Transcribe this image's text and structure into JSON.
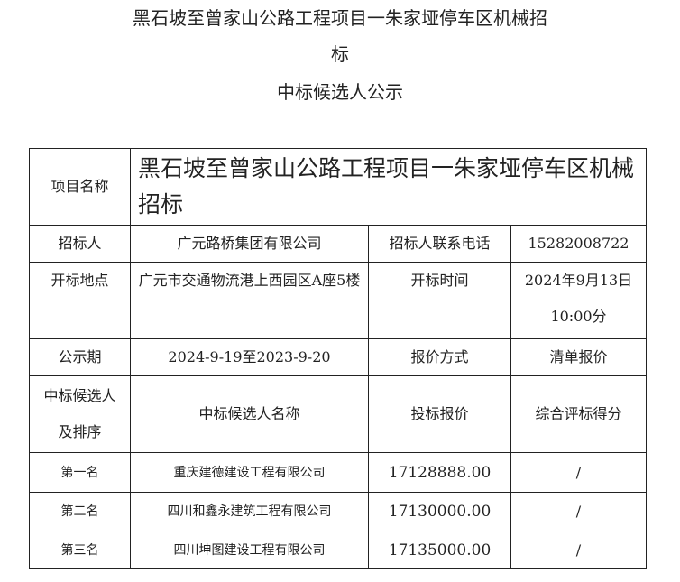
{
  "title": {
    "line1": "黑石坡至曾家山公路工程项目一朱家垭停车区机械招",
    "line2": "标",
    "line3": "中标候选人公示"
  },
  "table": {
    "project_name_label": "项目名称",
    "project_name_value": "黑石坡至曾家山公路工程项目一朱家垭停车区机械招标",
    "tenderer_label": "招标人",
    "tenderer_value": "广元路桥集团有限公司",
    "phone_label": "招标人联系电话",
    "phone_value": "15282008722",
    "location_label": "开标地点",
    "location_value": "广元市交通物流港上西园区A座5楼",
    "time_label": "开标时间",
    "time_value": "2024年9月13日10:00分",
    "period_label": "公示期",
    "period_value": "2024-9-19至2023-9-20",
    "quote_method_label": "报价方式",
    "quote_method_value": "清单报价",
    "headers": [
      "中标候选人及排序",
      "中标候选人名称",
      "投标报价",
      "综合评标得分"
    ],
    "rows": [
      {
        "rank": "第一名",
        "name": "重庆建德建设工程有限公司",
        "price": "17128888.00",
        "score": "/"
      },
      {
        "rank": "第二名",
        "name": "四川和鑫永建筑工程有限公司",
        "price": "17130000.00",
        "score": "/"
      },
      {
        "rank": "第三名",
        "name": "四川坤图建设工程有限公司",
        "price": "17135000.00",
        "score": "/"
      }
    ]
  }
}
